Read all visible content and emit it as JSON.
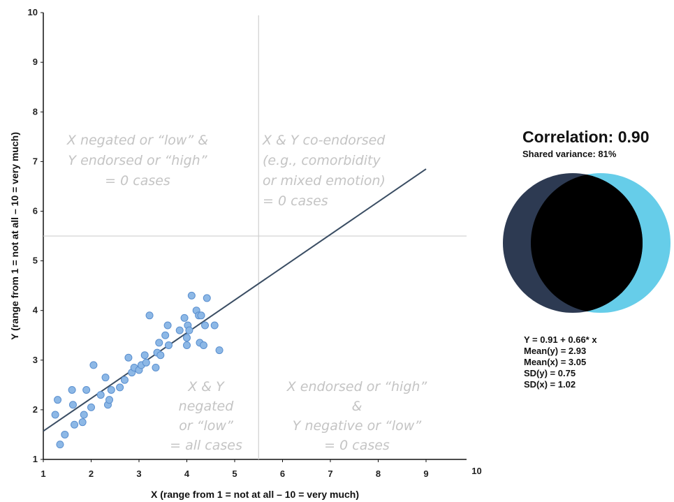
{
  "chart_data": {
    "type": "scatter",
    "xlabel": "X (range from 1 = not at all – 10 = very much)",
    "ylabel": "Y (range from 1 = not at all – 10 = very much)",
    "xlim": [
      1,
      10
    ],
    "ylim": [
      1,
      10
    ],
    "x_ticks": [
      1,
      2,
      3,
      4,
      5,
      6,
      7,
      8,
      9,
      10
    ],
    "y_ticks": [
      1,
      2,
      3,
      4,
      5,
      6,
      7,
      8,
      9,
      10
    ],
    "grid": false,
    "reference_lines": {
      "x": 5.5,
      "y": 5.5
    },
    "regression_line": {
      "intercept": 0.91,
      "slope": 0.66,
      "x_range": [
        1,
        9
      ]
    },
    "points": [
      {
        "x": 1.25,
        "y": 1.9
      },
      {
        "x": 1.3,
        "y": 2.2
      },
      {
        "x": 1.35,
        "y": 1.3
      },
      {
        "x": 1.45,
        "y": 1.5
      },
      {
        "x": 1.6,
        "y": 2.4
      },
      {
        "x": 1.62,
        "y": 2.1
      },
      {
        "x": 1.65,
        "y": 1.7
      },
      {
        "x": 1.82,
        "y": 1.75
      },
      {
        "x": 1.85,
        "y": 1.9
      },
      {
        "x": 1.9,
        "y": 2.4
      },
      {
        "x": 2.0,
        "y": 2.05
      },
      {
        "x": 2.05,
        "y": 2.9
      },
      {
        "x": 2.2,
        "y": 2.3
      },
      {
        "x": 2.3,
        "y": 2.65
      },
      {
        "x": 2.35,
        "y": 2.1
      },
      {
        "x": 2.38,
        "y": 2.2
      },
      {
        "x": 2.42,
        "y": 2.4
      },
      {
        "x": 2.6,
        "y": 2.45
      },
      {
        "x": 2.7,
        "y": 2.6
      },
      {
        "x": 2.78,
        "y": 3.05
      },
      {
        "x": 2.85,
        "y": 2.75
      },
      {
        "x": 2.9,
        "y": 2.85
      },
      {
        "x": 3.0,
        "y": 2.8
      },
      {
        "x": 3.05,
        "y": 2.9
      },
      {
        "x": 3.12,
        "y": 3.1
      },
      {
        "x": 3.15,
        "y": 2.95
      },
      {
        "x": 3.22,
        "y": 3.9
      },
      {
        "x": 3.35,
        "y": 2.85
      },
      {
        "x": 3.38,
        "y": 3.15
      },
      {
        "x": 3.42,
        "y": 3.35
      },
      {
        "x": 3.45,
        "y": 3.1
      },
      {
        "x": 3.55,
        "y": 3.5
      },
      {
        "x": 3.6,
        "y": 3.7
      },
      {
        "x": 3.62,
        "y": 3.3
      },
      {
        "x": 3.85,
        "y": 3.6
      },
      {
        "x": 3.95,
        "y": 3.85
      },
      {
        "x": 4.0,
        "y": 3.45
      },
      {
        "x": 4.0,
        "y": 3.3
      },
      {
        "x": 4.02,
        "y": 3.7
      },
      {
        "x": 4.05,
        "y": 3.6
      },
      {
        "x": 4.1,
        "y": 4.3
      },
      {
        "x": 4.2,
        "y": 4.0
      },
      {
        "x": 4.25,
        "y": 3.9
      },
      {
        "x": 4.27,
        "y": 3.35
      },
      {
        "x": 4.3,
        "y": 3.9
      },
      {
        "x": 4.35,
        "y": 3.3
      },
      {
        "x": 4.38,
        "y": 3.7
      },
      {
        "x": 4.42,
        "y": 4.25
      },
      {
        "x": 4.58,
        "y": 3.7
      },
      {
        "x": 4.68,
        "y": 3.2
      }
    ],
    "point_color": "#8db8e6",
    "point_stroke": "#5a8fcf",
    "line_color": "#3a4d63"
  },
  "quadrants": {
    "top_left": [
      "X negated or “low” &",
      "Y endorsed or “high”",
      "= 0 cases"
    ],
    "top_right": [
      "X & Y co-endorsed",
      "(e.g., comorbidity",
      "or mixed emotion)",
      "= 0 cases"
    ],
    "bottom_left": [
      "X & Y",
      "negated",
      "or “low”",
      "= all cases"
    ],
    "bottom_right": [
      "X endorsed or “high”",
      "&",
      "Y negative or “low”",
      "= 0 cases"
    ]
  },
  "side_panel": {
    "correlation_title": "Correlation: 0.90",
    "shared_variance": "Shared variance: 81%",
    "stats": [
      "Y = 0.91 + 0.66* x",
      "Mean(y) = 2.93",
      "Mean(x) = 3.05",
      "SD(y) = 0.75",
      "SD(x) = 1.02"
    ],
    "venn_colors": {
      "left": "#2d3a52",
      "right": "#66cde9",
      "overlap": "#000000"
    }
  }
}
